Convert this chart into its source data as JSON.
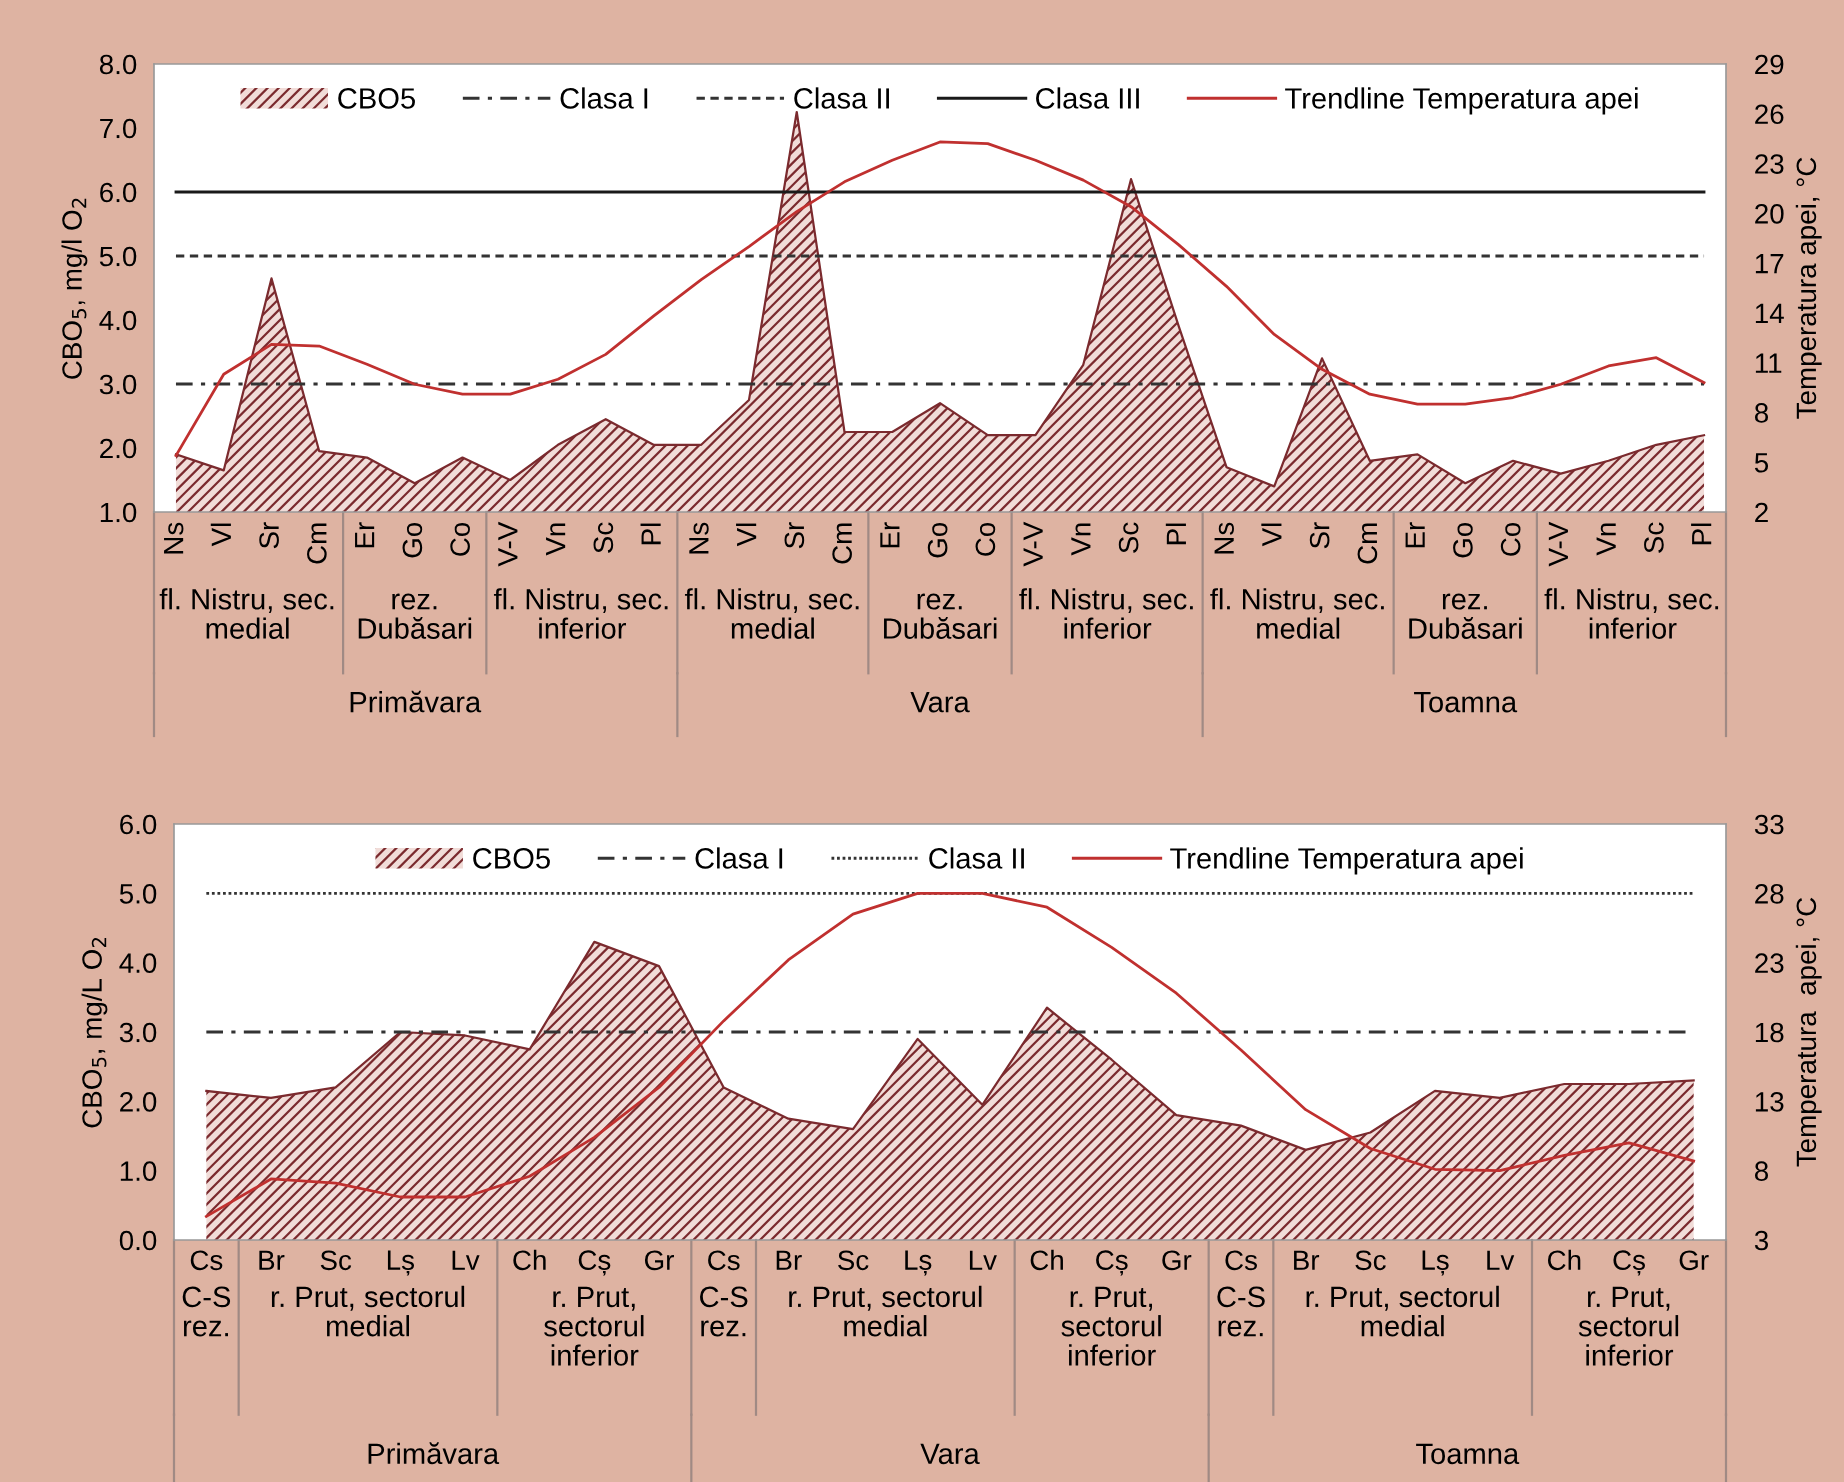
{
  "chart_data": [
    {
      "type": "area",
      "categories": [
        "Ns",
        "Vl",
        "Sr",
        "Cm",
        "Er",
        "Go",
        "Co",
        "V-V",
        "Vn",
        "Sc",
        "Pl",
        "Ns",
        "Vl",
        "Sr",
        "Cm",
        "Er",
        "Go",
        "Co",
        "V-V",
        "Vn",
        "Sc",
        "Pl",
        "Ns",
        "Vl",
        "Sr",
        "Cm",
        "Er",
        "Go",
        "Co",
        "V-V",
        "Vn",
        "Sc",
        "Pl"
      ],
      "series": [
        {
          "name": "CBO5",
          "color": "#7b2a2e",
          "values": [
            1.9,
            1.65,
            4.65,
            1.95,
            1.85,
            1.45,
            1.85,
            1.5,
            2.05,
            2.45,
            2.05,
            2.05,
            2.75,
            7.25,
            2.25,
            2.25,
            2.7,
            2.2,
            2.2,
            3.3,
            6.2,
            3.9,
            1.7,
            1.4,
            3.4,
            1.8,
            1.9,
            1.45,
            1.8,
            1.6,
            1.8,
            2.05,
            2.2
          ]
        },
        {
          "name": "Trendline Temperatura apei",
          "type": "line",
          "axis": "y2",
          "color": "#c0302f",
          "values": [
            5.4,
            10.3,
            12.1,
            12.0,
            10.9,
            9.7,
            9.1,
            9.1,
            10.0,
            11.5,
            13.8,
            16.0,
            18.0,
            20.1,
            21.9,
            23.2,
            24.3,
            24.2,
            23.2,
            22.0,
            20.4,
            18.1,
            15.6,
            12.7,
            10.6,
            9.1,
            8.5,
            8.5,
            8.9,
            9.7,
            10.8,
            11.3,
            9.8
          ]
        }
      ],
      "ylabel": "CBO$_{5}$, mg/l O$_{2}$",
      "y2label": "Temperatura apei, °C",
      "ylim": [
        1,
        8
      ],
      "yticks": [
        {
          "value": 1,
          "label": "1.0"
        },
        {
          "value": 2,
          "label": "2.0"
        },
        {
          "value": 3,
          "label": "3.0"
        },
        {
          "value": 4,
          "label": "4.0"
        },
        {
          "value": 5,
          "label": "5.0"
        },
        {
          "value": 6,
          "label": "6.0"
        },
        {
          "value": 7,
          "label": "7.0"
        },
        {
          "value": 8,
          "label": "8.0"
        }
      ],
      "y2lim": [
        2,
        29
      ],
      "y2ticks": [
        2,
        5,
        8,
        11,
        14,
        17,
        20,
        23,
        26,
        29
      ],
      "ref_lines": [
        {
          "axis": "y",
          "value": 3,
          "label": "Clasa I",
          "line_style": "dashdot",
          "color": "#333333"
        },
        {
          "axis": "y",
          "value": 5,
          "label": "Clasa II",
          "line_style": "dashed",
          "color": "#333333"
        },
        {
          "axis": "y",
          "value": 6,
          "label": "Clasa III",
          "line_style": "solid",
          "color": "#1a1a1a"
        }
      ],
      "annotations": [
        "fl. Nistru, sec. medial",
        "rez. Dubăsari",
        "fl. Nistru, sec. inferior",
        "fl. Nistru, sec. medial",
        "rez. Dubăsari",
        "fl. Nistru, sec. inferior",
        "fl. Nistru, sec. medial",
        "rez. Dubăsari",
        "fl. Nistru, sec. inferior",
        "Primăvara",
        "Vara",
        "Toamna"
      ],
      "legend": "top",
      "grid": false
    },
    {
      "type": "area",
      "categories": [
        "Cs",
        "Br",
        "Sc",
        "Lș",
        "Lv",
        "Ch",
        "Cș",
        "Gr",
        "Cs",
        "Br",
        "Sc",
        "Lș",
        "Lv",
        "Ch",
        "Cș",
        "Gr",
        "Cs",
        "Br",
        "Sc",
        "Lș",
        "Lv",
        "Ch",
        "Cș",
        "Gr"
      ],
      "series": [
        {
          "name": "CBO5",
          "color": "#7b2a2e",
          "values": [
            2.15,
            2.05,
            2.2,
            3.0,
            2.95,
            2.75,
            4.3,
            3.95,
            2.2,
            1.75,
            1.6,
            2.9,
            1.95,
            3.35,
            2.6,
            1.8,
            1.65,
            1.3,
            1.55,
            2.15,
            2.05,
            2.25,
            2.25,
            2.3
          ]
        },
        {
          "name": "Trendline Temperatura apei",
          "type": "line",
          "axis": "y2",
          "color": "#c0302f",
          "values": [
            4.7,
            7.4,
            7.1,
            6.1,
            6.1,
            7.6,
            10.4,
            14.0,
            18.8,
            23.2,
            26.5,
            28.0,
            28.0,
            27.0,
            24.1,
            20.8,
            16.7,
            12.4,
            9.6,
            8.1,
            8.0,
            9.1,
            10.0,
            8.7
          ]
        }
      ],
      "ylabel": "CBO$_{5}$, mg/L O$_{2}$",
      "y2label": "Temperatura  apei, °C",
      "ylim": [
        0,
        6
      ],
      "yticks": [
        {
          "value": 0,
          "label": "0.0"
        },
        {
          "value": 1,
          "label": "1.0"
        },
        {
          "value": 2,
          "label": "2.0"
        },
        {
          "value": 3,
          "label": "3.0"
        },
        {
          "value": 4,
          "label": "4.0"
        },
        {
          "value": 5,
          "label": "5.0"
        },
        {
          "value": 6,
          "label": "6.0"
        }
      ],
      "y2lim": [
        3,
        33
      ],
      "y2ticks": [
        3,
        8,
        13,
        18,
        23,
        28,
        33
      ],
      "ref_lines": [
        {
          "axis": "y",
          "value": 3,
          "label": "Clasa I",
          "line_style": "dashdot",
          "color": "#333333"
        },
        {
          "axis": "y",
          "value": 5,
          "label": "Clasa II",
          "line_style": "dotted",
          "color": "#333333"
        }
      ],
      "annotations": [
        "C-S rez.",
        "r. Prut, sectorul medial",
        "r. Prut, sectorul inferior",
        "C-S rez.",
        "r. Prut, sectorul medial",
        "r. Prut, sectorul inferior",
        "C-S rez.",
        "r. Prut, sectorul medial",
        "r. Prut, sectorul inferior",
        "Primăvara",
        "Vara",
        "Toamna"
      ],
      "legend": "top",
      "grid": false
    }
  ]
}
